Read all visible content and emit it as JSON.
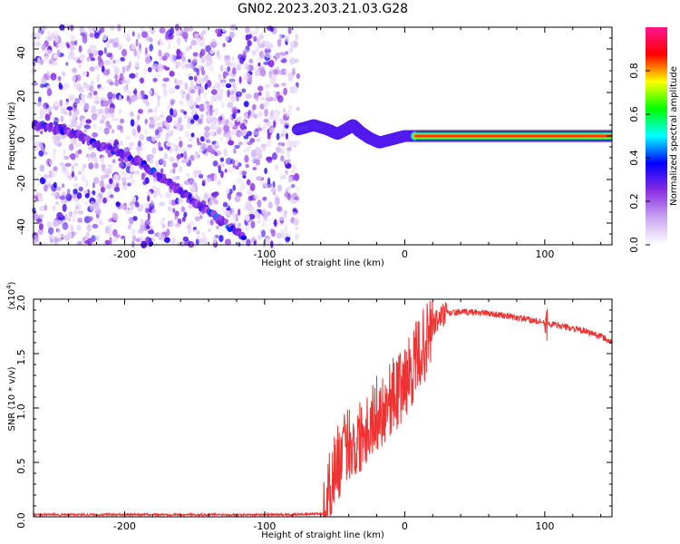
{
  "figure_title": "GN02.2023.203.21.03.G28",
  "chart_data": [
    {
      "type": "heatmap",
      "xlabel": "Height of straight line (km)",
      "ylabel": "Frequency (Hz)",
      "xlim": [
        -265,
        148
      ],
      "ylim": [
        -50,
        50
      ],
      "x_ticks": [
        -200,
        -100,
        0,
        100
      ],
      "y_ticks": [
        -40,
        -20,
        0,
        20,
        40
      ],
      "colorbar": {
        "label": "Normalized spectral amplitude",
        "range": [
          0,
          1
        ],
        "ticks": [
          0.0,
          0.2,
          0.4,
          0.6,
          0.8
        ],
        "colors": [
          "#ffffff",
          "#c9a6f2",
          "#8a2be2",
          "#0000ff",
          "#00ffff",
          "#00ff00",
          "#ffff00",
          "#ff0000",
          "#ff1493"
        ]
      },
      "features": [
        {
          "name": "noise",
          "x_range": [
            -265,
            -76
          ],
          "y_range": [
            -50,
            50
          ],
          "amplitude": 0.1
        },
        {
          "name": "track",
          "points": [
            [
              -265,
              5
            ],
            [
              -240,
              2
            ],
            [
              -215,
              -5
            ],
            [
              -190,
              -12
            ],
            [
              -165,
              -23
            ],
            [
              -140,
              -35
            ],
            [
              -115,
              -46
            ]
          ],
          "amplitude": 0.25
        },
        {
          "name": "carrier",
          "points": [
            [
              -76,
              3
            ],
            [
              -65,
              5
            ],
            [
              -55,
              3
            ],
            [
              -48,
              1
            ],
            [
              -42,
              3
            ],
            [
              -37,
              5
            ],
            [
              -32,
              2
            ],
            [
              -25,
              -1
            ],
            [
              -18,
              -3
            ],
            [
              -12,
              -2
            ],
            [
              -6,
              -1
            ],
            [
              0,
              0
            ],
            [
              8,
              0
            ],
            [
              148,
              0
            ]
          ],
          "amplitude": 0.9
        }
      ]
    },
    {
      "type": "line",
      "xlabel": "Height of straight line (km)",
      "ylabel": "SNR (10 * v/v)",
      "y_multiplier": "(x10^4)",
      "xlim": [
        -265,
        148
      ],
      "ylim": [
        0,
        2.0
      ],
      "x_ticks": [
        -200,
        -100,
        0,
        100
      ],
      "y_ticks": [
        0.0,
        0.5,
        1.0,
        1.5,
        2.0
      ],
      "series": [
        {
          "color": "#ee3333",
          "x": [
            -265,
            -240,
            -200,
            -160,
            -120,
            -80,
            -58,
            -56,
            -50,
            -45,
            -40,
            -35,
            -30,
            -25,
            -20,
            -15,
            -10,
            -5,
            0,
            5,
            10,
            15,
            20,
            25,
            30,
            40,
            50,
            60,
            70,
            80,
            90,
            100,
            110,
            120,
            130,
            140,
            148
          ],
          "y": [
            0.02,
            0.02,
            0.02,
            0.02,
            0.02,
            0.02,
            0.03,
            0.15,
            0.45,
            0.55,
            0.7,
            0.65,
            0.8,
            0.85,
            0.95,
            1.0,
            1.1,
            1.15,
            1.25,
            1.35,
            1.5,
            1.6,
            1.75,
            1.83,
            1.87,
            1.88,
            1.88,
            1.87,
            1.85,
            1.83,
            1.81,
            1.78,
            1.76,
            1.73,
            1.7,
            1.66,
            1.6
          ]
        }
      ]
    }
  ]
}
